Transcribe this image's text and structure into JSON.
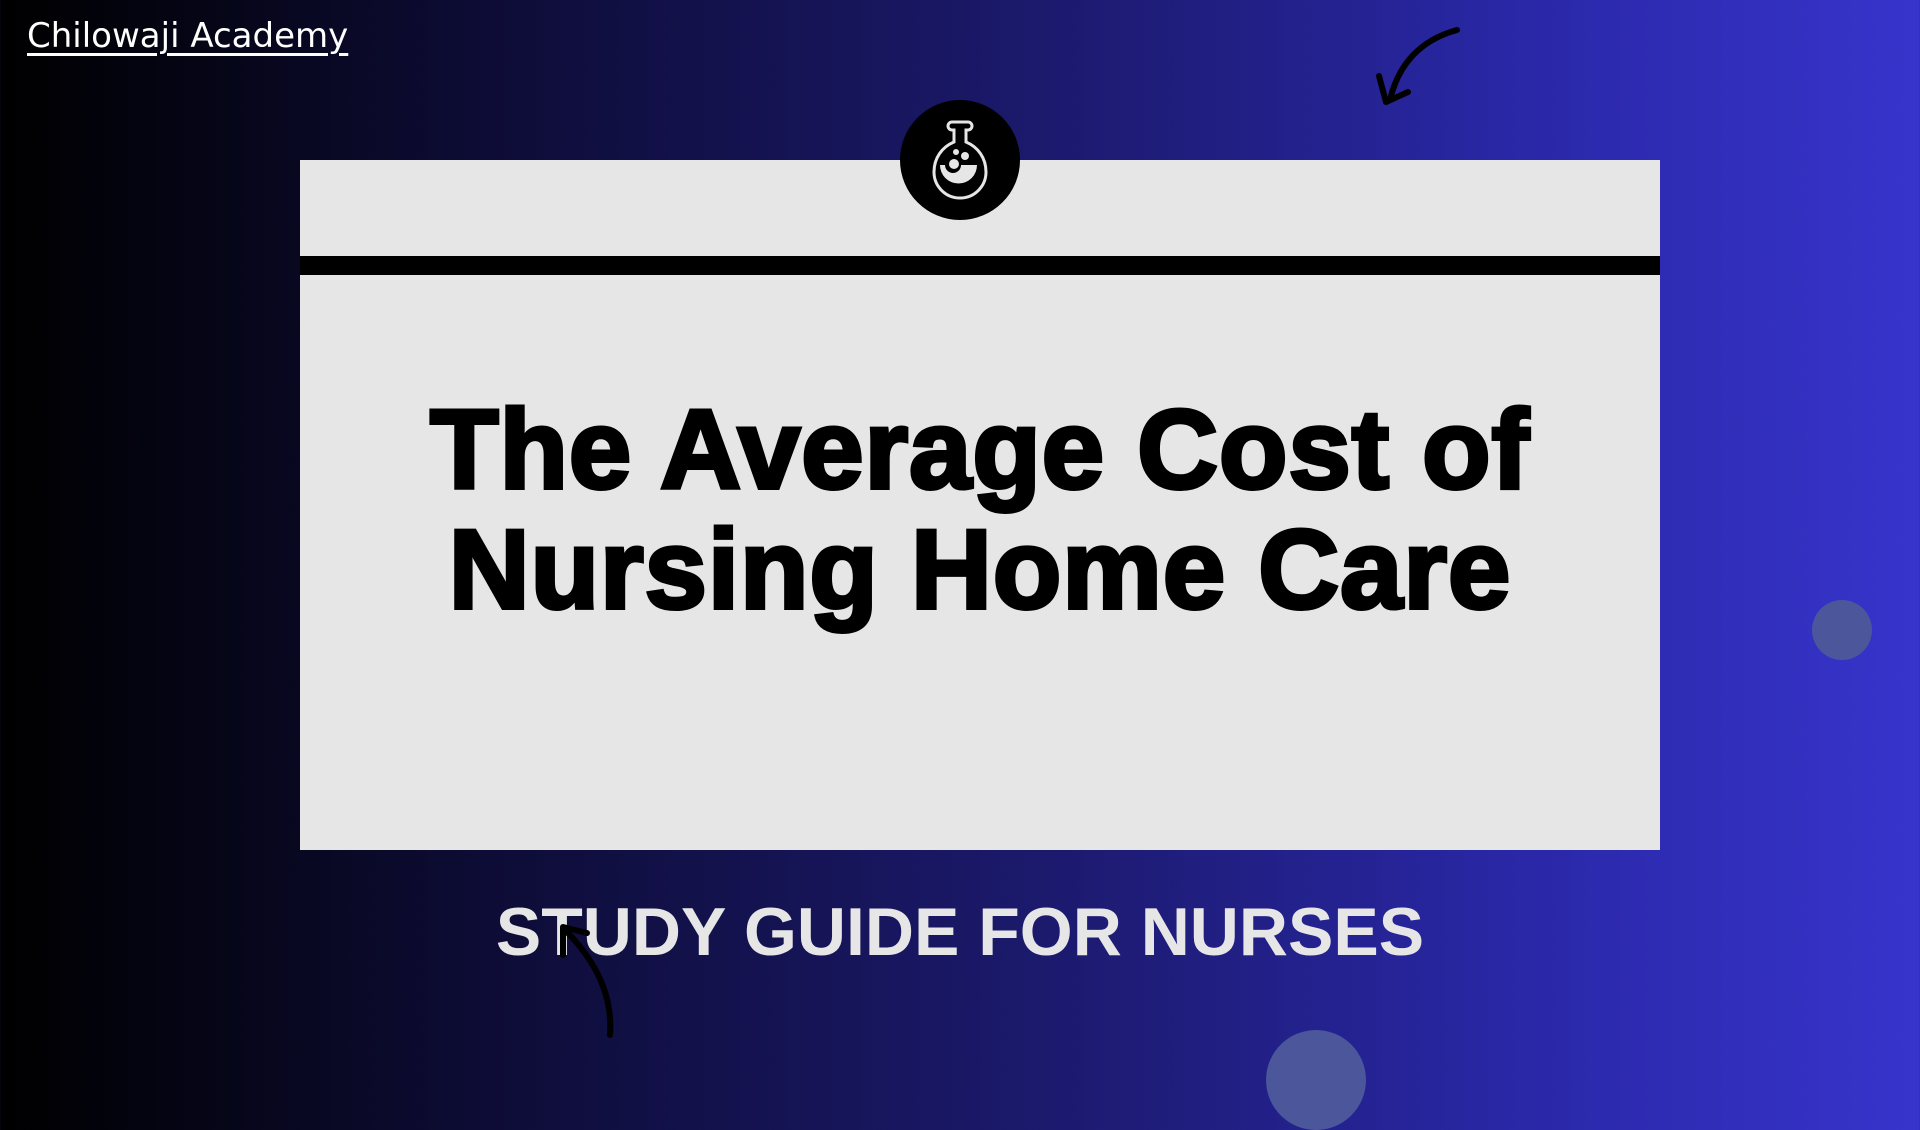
{
  "brand": {
    "name": "Chilowaji Academy"
  },
  "card": {
    "title_line1": "The Average Cost of",
    "title_line2": "Nursing Home Care",
    "icon": "flask-icon"
  },
  "subtitle": "STUDY GUIDE FOR NURSES",
  "colors": {
    "card_bg": "#e6e6e6",
    "gradient_start": "#000000",
    "gradient_end": "#3734cc",
    "dot": "#4b569b"
  }
}
